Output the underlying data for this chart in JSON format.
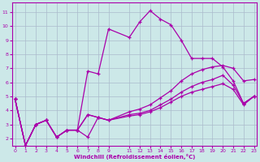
{
  "xlabel": "Windchill (Refroidissement éolien,°C)",
  "bg_color": "#cce8e8",
  "line_color": "#aa00aa",
  "grid_color": "#aabbcc",
  "x_ticks": [
    0,
    1,
    2,
    3,
    4,
    5,
    6,
    7,
    8,
    9,
    11,
    12,
    13,
    14,
    15,
    16,
    17,
    18,
    19,
    20,
    21,
    22,
    23
  ],
  "y_ticks": [
    2,
    3,
    4,
    5,
    6,
    7,
    8,
    9,
    10,
    11
  ],
  "xlim": [
    -0.3,
    23.3
  ],
  "ylim": [
    1.5,
    11.7
  ],
  "series": {
    "s1_x": [
      0,
      1,
      2,
      3,
      4,
      5,
      6,
      7,
      8,
      9,
      11,
      12,
      13,
      14,
      15,
      16,
      17,
      18,
      19,
      20,
      21,
      22,
      23
    ],
    "s1_y": [
      4.8,
      1.5,
      3.0,
      3.3,
      2.1,
      2.6,
      2.6,
      6.8,
      6.6,
      9.8,
      9.2,
      10.3,
      11.1,
      10.5,
      10.1,
      9.0,
      7.7,
      7.7,
      7.7,
      7.1,
      6.1,
      4.5,
      5.0
    ],
    "s2_x": [
      0,
      1,
      2,
      3,
      4,
      5,
      6,
      7,
      8,
      9,
      11,
      12,
      13,
      14,
      15,
      16,
      17,
      18,
      19,
      20,
      21,
      22,
      23
    ],
    "s2_y": [
      4.8,
      1.5,
      3.0,
      3.3,
      2.1,
      2.6,
      2.6,
      3.7,
      3.5,
      3.3,
      3.9,
      4.1,
      4.4,
      4.9,
      5.4,
      6.1,
      6.6,
      6.9,
      7.1,
      7.2,
      7.0,
      6.1,
      6.2
    ],
    "s3_x": [
      0,
      1,
      2,
      3,
      4,
      5,
      6,
      7,
      8,
      9,
      11,
      12,
      13,
      14,
      15,
      16,
      17,
      18,
      19,
      20,
      21,
      22,
      23
    ],
    "s3_y": [
      4.8,
      1.5,
      3.0,
      3.3,
      2.1,
      2.6,
      2.6,
      3.7,
      3.5,
      3.3,
      3.7,
      3.8,
      4.0,
      4.4,
      4.8,
      5.3,
      5.7,
      6.0,
      6.2,
      6.5,
      5.8,
      4.5,
      5.0
    ],
    "s4_x": [
      0,
      1,
      2,
      3,
      4,
      5,
      6,
      7,
      8,
      9,
      11,
      12,
      13,
      14,
      15,
      16,
      17,
      18,
      19,
      20,
      21,
      22,
      23
    ],
    "s4_y": [
      4.8,
      1.5,
      3.0,
      3.3,
      2.1,
      2.6,
      2.6,
      2.1,
      3.5,
      3.3,
      3.6,
      3.7,
      3.9,
      4.2,
      4.6,
      5.0,
      5.3,
      5.5,
      5.7,
      5.9,
      5.5,
      4.4,
      5.0
    ]
  }
}
